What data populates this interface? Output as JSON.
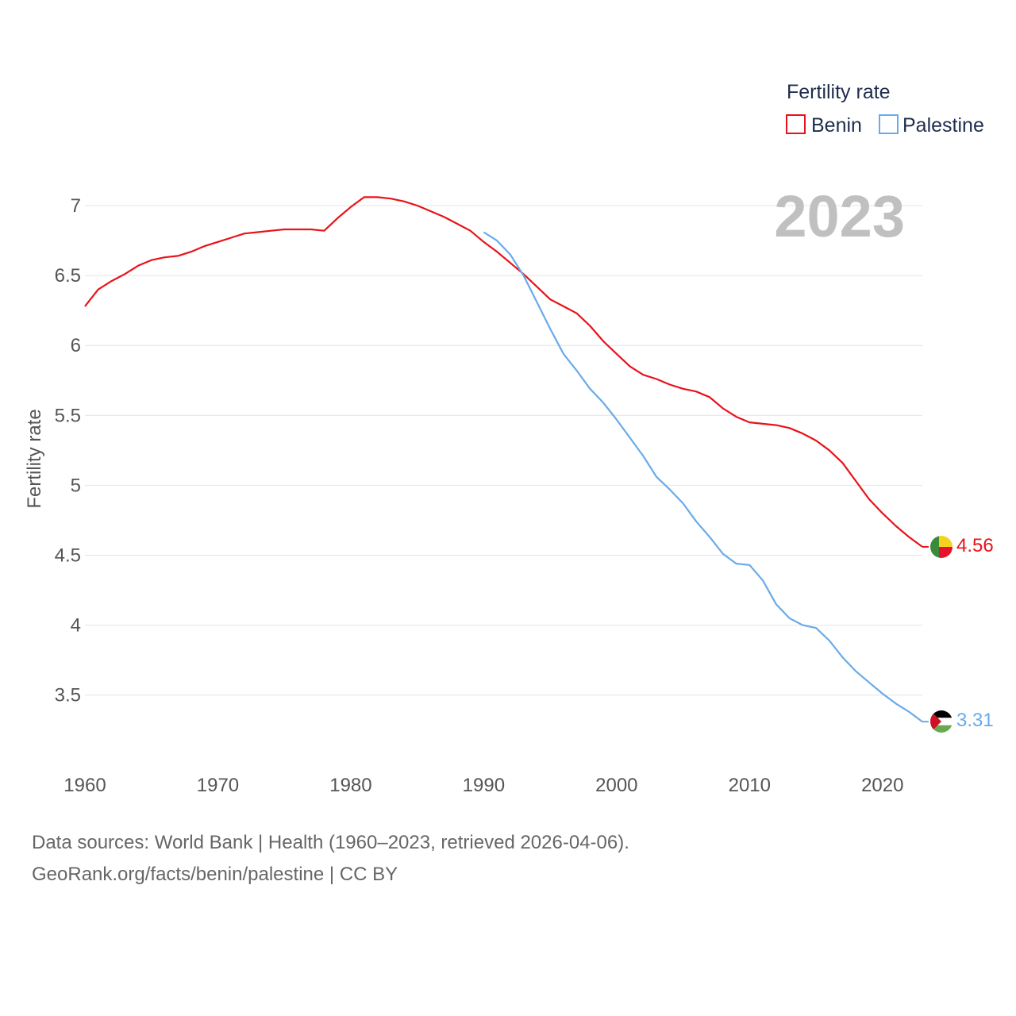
{
  "chart_data": {
    "type": "line",
    "title": "",
    "ylabel": "Fertility rate",
    "xlabel": "",
    "xlim": [
      1960,
      2023
    ],
    "ylim": [
      3.1,
      7.25
    ],
    "yticks": [
      3.5,
      4,
      4.5,
      5,
      5.5,
      6,
      6.5,
      7
    ],
    "ytick_labels": [
      "3.5",
      "4",
      "4.5",
      "5",
      "5.5",
      "6",
      "6.5",
      "7"
    ],
    "xticks": [
      1960,
      1970,
      1980,
      1990,
      2000,
      2010,
      2020
    ],
    "xtick_labels": [
      "1960",
      "1970",
      "1980",
      "1990",
      "2000",
      "2010",
      "2020"
    ],
    "legend_title": "Fertility rate",
    "legend_position": "top-right",
    "year_label": "2023",
    "grid": true,
    "series": [
      {
        "name": "Benin",
        "color": "#e8121a",
        "end_label": "4.56",
        "flag_icon": "benin-flag-icon",
        "x": [
          1960,
          1961,
          1962,
          1963,
          1964,
          1965,
          1966,
          1967,
          1968,
          1969,
          1970,
          1971,
          1972,
          1973,
          1974,
          1975,
          1976,
          1977,
          1978,
          1979,
          1980,
          1981,
          1982,
          1983,
          1984,
          1985,
          1986,
          1987,
          1988,
          1989,
          1990,
          1991,
          1992,
          1993,
          1994,
          1995,
          1996,
          1997,
          1998,
          1999,
          2000,
          2001,
          2002,
          2003,
          2004,
          2005,
          2006,
          2007,
          2008,
          2009,
          2010,
          2011,
          2012,
          2013,
          2014,
          2015,
          2016,
          2017,
          2018,
          2019,
          2020,
          2021,
          2022,
          2023
        ],
        "values": [
          6.28,
          6.4,
          6.46,
          6.51,
          6.57,
          6.61,
          6.63,
          6.64,
          6.67,
          6.71,
          6.74,
          6.77,
          6.8,
          6.81,
          6.82,
          6.83,
          6.83,
          6.83,
          6.82,
          6.91,
          6.99,
          7.06,
          7.06,
          7.05,
          7.03,
          7.0,
          6.96,
          6.92,
          6.87,
          6.82,
          6.74,
          6.67,
          6.59,
          6.51,
          6.42,
          6.33,
          6.28,
          6.23,
          6.14,
          6.03,
          5.94,
          5.85,
          5.79,
          5.76,
          5.72,
          5.69,
          5.67,
          5.63,
          5.55,
          5.49,
          5.45,
          5.44,
          5.43,
          5.41,
          5.37,
          5.32,
          5.25,
          5.16,
          5.03,
          4.9,
          4.8,
          4.71,
          4.63,
          4.56
        ]
      },
      {
        "name": "Palestine",
        "color": "#6aaae8",
        "end_label": "3.31",
        "flag_icon": "palestine-flag-icon",
        "x": [
          1990,
          1991,
          1992,
          1993,
          1994,
          1995,
          1996,
          1997,
          1998,
          1999,
          2000,
          2001,
          2002,
          2003,
          2004,
          2005,
          2006,
          2007,
          2008,
          2009,
          2010,
          2011,
          2012,
          2013,
          2014,
          2015,
          2016,
          2017,
          2018,
          2019,
          2020,
          2021,
          2022,
          2023
        ],
        "values": [
          6.81,
          6.75,
          6.65,
          6.5,
          6.31,
          6.12,
          5.94,
          5.82,
          5.69,
          5.59,
          5.47,
          5.34,
          5.21,
          5.06,
          4.97,
          4.87,
          4.74,
          4.63,
          4.51,
          4.44,
          4.43,
          4.32,
          4.15,
          4.05,
          4.0,
          3.98,
          3.89,
          3.77,
          3.67,
          3.59,
          3.51,
          3.44,
          3.38,
          3.31
        ]
      }
    ]
  },
  "footer": {
    "line1": "Data sources: World Bank | Health (1960–2023, retrieved 2026-04-06).",
    "line2": "GeoRank.org/facts/benin/palestine | CC BY"
  }
}
